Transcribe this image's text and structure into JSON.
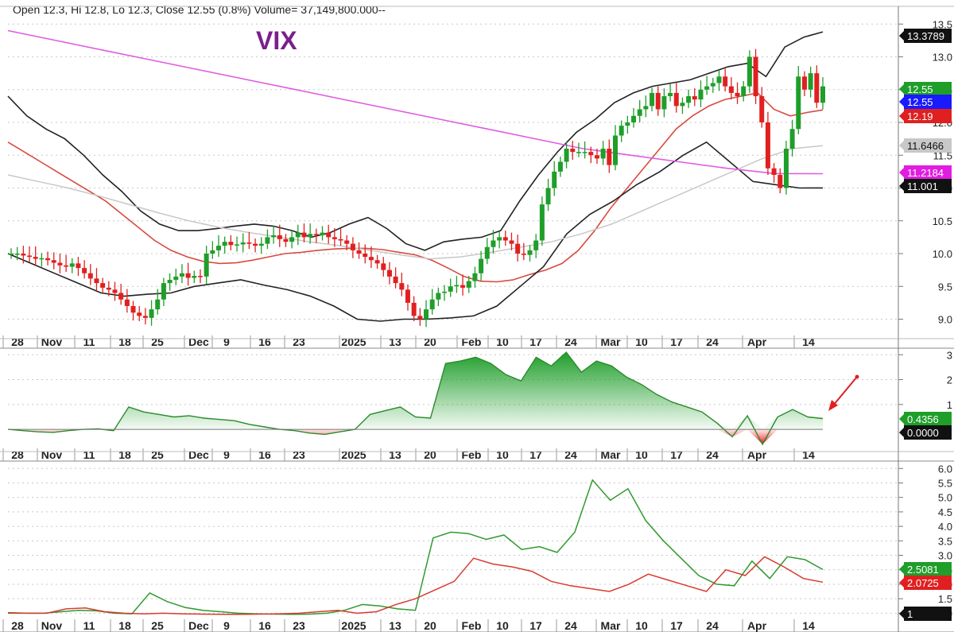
{
  "header": {
    "ohlc_text": "Open 12.3, Hi 12.8, Lo 12.3, Close 12.55 (0.8%) Volume= 37,149,800.000--"
  },
  "chart_data": [
    {
      "type": "candlestick",
      "title": "VIX",
      "x_axis_labels": [
        "28",
        "Nov",
        "11",
        "18",
        "25",
        "Dec",
        "9",
        "16",
        "23",
        "2025",
        "13",
        "20",
        "Feb",
        "10",
        "17",
        "24",
        "Mar",
        "10",
        "17",
        "24",
        "Apr",
        "14"
      ],
      "y_ticks": [
        "13.5",
        "13.0",
        "12.5",
        "12.0",
        "11.5",
        "11.0",
        "10.5",
        "10.0",
        "9.5",
        "9.0"
      ],
      "ylim": [
        8.8,
        13.6
      ],
      "grid": true,
      "candles_close": [
        10.0,
        10.0,
        9.97,
        9.95,
        9.92,
        9.93,
        9.9,
        9.86,
        9.82,
        9.8,
        9.85,
        9.78,
        9.7,
        9.62,
        9.55,
        9.48,
        9.45,
        9.4,
        9.3,
        9.2,
        9.1,
        9.05,
        9.02,
        9.15,
        9.3,
        9.55,
        9.6,
        9.65,
        9.7,
        9.63,
        9.66,
        9.65,
        10.0,
        10.05,
        10.12,
        10.18,
        10.13,
        10.14,
        10.17,
        10.15,
        10.12,
        10.15,
        10.25,
        10.28,
        10.22,
        10.18,
        10.25,
        10.32,
        10.25,
        10.3,
        10.28,
        10.32,
        10.25,
        10.22,
        10.2,
        10.15,
        10.05,
        10.0,
        9.95,
        9.9,
        9.85,
        9.75,
        9.65,
        9.55,
        9.45,
        9.25,
        9.05,
        9.0,
        9.15,
        9.3,
        9.4,
        9.42,
        9.5,
        9.52,
        9.48,
        9.58,
        9.7,
        9.92,
        10.1,
        10.2,
        10.25,
        10.2,
        10.15,
        10.0,
        9.98,
        10.05,
        10.2,
        10.75,
        11.0,
        11.25,
        11.4,
        11.6,
        11.55,
        11.55,
        11.55,
        11.5,
        11.45,
        11.6,
        11.35,
        11.8,
        11.95,
        12.0,
        12.1,
        12.2,
        12.25,
        12.45,
        12.2,
        12.4,
        12.45,
        12.25,
        12.3,
        12.4,
        12.35,
        12.5,
        12.55,
        12.6,
        12.7,
        12.55,
        12.45,
        12.4,
        12.55,
        13.0,
        12.4,
        12.0,
        11.3,
        11.2,
        11.0,
        11.6,
        11.9,
        12.7,
        12.5,
        12.75,
        12.3,
        12.55
      ],
      "series": [
        {
          "name": "",
          "color": "#d94a3f",
          "role": "middle-band",
          "values": [
            11.7,
            11.55,
            11.4,
            11.25,
            11.1,
            10.95,
            10.8,
            10.6,
            10.4,
            10.2,
            10.05,
            9.95,
            9.88,
            9.85,
            9.86,
            9.9,
            9.95,
            10.0,
            10.02,
            10.05,
            10.07,
            10.08,
            10.08,
            10.06,
            10.02,
            9.98,
            9.9,
            9.78,
            9.65,
            9.58,
            9.57,
            9.6,
            9.68,
            9.75,
            9.85,
            10.05,
            10.35,
            10.7,
            11.0,
            11.3,
            11.6,
            11.9,
            12.1,
            12.25,
            12.35,
            12.4,
            12.45,
            12.2,
            12.1,
            12.15,
            12.19
          ]
        },
        {
          "name": "",
          "color": "#222222",
          "role": "upper-band",
          "values": [
            12.4,
            12.1,
            11.9,
            11.75,
            11.5,
            11.2,
            10.95,
            10.65,
            10.45,
            10.35,
            10.35,
            10.38,
            10.42,
            10.45,
            10.42,
            10.35,
            10.25,
            10.32,
            10.45,
            10.55,
            10.38,
            10.15,
            10.05,
            10.18,
            10.22,
            10.25,
            10.35,
            10.8,
            11.2,
            11.55,
            11.85,
            12.05,
            12.3,
            12.45,
            12.55,
            12.6,
            12.65,
            12.75,
            12.85,
            12.9,
            12.7,
            13.15,
            13.3,
            13.38
          ]
        },
        {
          "name": "",
          "color": "#222222",
          "role": "lower-band",
          "values": [
            10.0,
            9.85,
            9.7,
            9.55,
            9.4,
            9.35,
            9.38,
            9.4,
            9.5,
            9.55,
            9.6,
            9.52,
            9.45,
            9.35,
            9.2,
            9.0,
            8.97,
            9.0,
            9.0,
            9.02,
            9.05,
            9.2,
            9.5,
            9.8,
            10.3,
            10.6,
            10.8,
            11.05,
            11.25,
            11.5,
            11.7,
            11.4,
            11.1,
            11.05,
            11.0,
            11.001
          ]
        },
        {
          "name": "",
          "color": "#c8c8c8",
          "role": "slow-ma",
          "values": [
            11.2,
            11.1,
            11.0,
            10.88,
            10.75,
            10.62,
            10.5,
            10.4,
            10.32,
            10.25,
            10.18,
            10.12,
            10.05,
            9.98,
            9.92,
            9.95,
            10.02,
            10.1,
            10.18,
            10.3,
            10.45,
            10.65,
            10.85,
            11.05,
            11.25,
            11.45,
            11.6,
            11.6466
          ]
        },
        {
          "name": "",
          "color": "#e05ce0",
          "role": "long-ma",
          "values": [
            13.4,
            13.25,
            13.1,
            12.95,
            12.8,
            12.65,
            12.5,
            12.35,
            12.2,
            12.05,
            11.9,
            11.75,
            11.6,
            11.5,
            11.4,
            11.3,
            11.22,
            11.2184
          ]
        }
      ],
      "price_labels": [
        {
          "text": "13.3789",
          "bg": "#111111",
          "fg": "#ffffff"
        },
        {
          "text": "12.55",
          "bg": "#1f9e2a",
          "fg": "#ffffff"
        },
        {
          "text": "12.55",
          "bg": "#1a1aff",
          "fg": "#ffffff"
        },
        {
          "text": "12.19",
          "bg": "#e02020",
          "fg": "#ffffff"
        },
        {
          "text": "11.6466",
          "bg": "#c8c8c8",
          "fg": "#111111"
        },
        {
          "text": "11.2184",
          "bg": "#e01de0",
          "fg": "#ffffff"
        },
        {
          "text": "11.001",
          "bg": "#111111",
          "fg": "#ffffff"
        }
      ]
    },
    {
      "type": "area",
      "x_axis_labels": [
        "28",
        "Nov",
        "11",
        "18",
        "25",
        "Dec",
        "9",
        "16",
        "23",
        "2025",
        "13",
        "20",
        "Feb",
        "10",
        "17",
        "24",
        "Mar",
        "10",
        "17",
        "24",
        "Apr",
        "14"
      ],
      "y_ticks": [
        "3",
        "2",
        "1"
      ],
      "ylim": [
        -0.7,
        3.2
      ],
      "values": [
        0.0,
        -0.05,
        -0.1,
        -0.12,
        -0.05,
        0.0,
        0.02,
        -0.05,
        0.9,
        0.7,
        0.6,
        0.5,
        0.55,
        0.45,
        0.4,
        0.35,
        0.2,
        0.1,
        0.0,
        -0.05,
        -0.15,
        -0.2,
        -0.1,
        0.0,
        0.6,
        0.75,
        0.9,
        0.5,
        0.45,
        2.65,
        2.75,
        2.9,
        2.65,
        2.2,
        1.95,
        2.9,
        2.55,
        3.1,
        2.3,
        2.75,
        2.55,
        2.1,
        1.8,
        1.4,
        1.1,
        0.9,
        0.7,
        0.25,
        -0.3,
        0.55,
        -0.6,
        0.5,
        0.8,
        0.5,
        0.4356
      ],
      "price_labels": [
        {
          "text": "0.4356",
          "bg": "#1f9e2a",
          "fg": "#ffffff"
        },
        {
          "text": "0.0000",
          "bg": "#111111",
          "fg": "#ffffff"
        }
      ]
    },
    {
      "type": "line",
      "x_axis_labels": [
        "28",
        "Nov",
        "11",
        "18",
        "25",
        "Dec",
        "9",
        "16",
        "23",
        "2025",
        "13",
        "20",
        "Feb",
        "10",
        "17",
        "24",
        "Mar",
        "10",
        "17",
        "24",
        "Apr",
        "14"
      ],
      "y_ticks": [
        "6.0",
        "5.5",
        "5.0",
        "4.5",
        "4.0",
        "3.5",
        "3.0",
        "2.5",
        "2.0",
        "1.5",
        "1.0"
      ],
      "ylim": [
        0.9,
        6.2
      ],
      "series": [
        {
          "name": "",
          "color": "#2f9a2f",
          "values": [
            1.0,
            1.0,
            1.0,
            1.05,
            1.1,
            1.08,
            1.0,
            0.98,
            1.7,
            1.4,
            1.2,
            1.1,
            1.05,
            1.0,
            0.98,
            0.97,
            0.96,
            0.97,
            1.0,
            1.1,
            1.3,
            1.25,
            1.15,
            1.1,
            3.6,
            3.8,
            3.75,
            3.55,
            3.7,
            3.2,
            3.3,
            3.1,
            3.8,
            5.6,
            4.9,
            5.3,
            4.2,
            3.5,
            2.9,
            2.3,
            2.0,
            1.95,
            2.8,
            2.2,
            2.95,
            2.85,
            2.5081
          ]
        },
        {
          "name": "",
          "color": "#d83a30",
          "values": [
            1.02,
            1.0,
            1.0,
            1.15,
            1.18,
            1.05,
            1.0,
            0.98,
            1.0,
            0.98,
            0.97,
            0.96,
            0.96,
            0.97,
            0.98,
            1.0,
            1.05,
            1.1,
            1.0,
            1.05,
            1.3,
            1.5,
            1.8,
            2.1,
            2.9,
            2.7,
            2.6,
            2.45,
            2.1,
            1.95,
            1.85,
            1.75,
            2.0,
            2.35,
            2.15,
            1.95,
            1.75,
            2.5,
            2.3,
            2.95,
            2.6,
            2.2,
            2.0725
          ]
        }
      ],
      "price_labels": [
        {
          "text": "2.5081",
          "bg": "#1f9e2a",
          "fg": "#ffffff"
        },
        {
          "text": "2.0725",
          "bg": "#e02020",
          "fg": "#ffffff"
        },
        {
          "text": "1",
          "bg": "#111111",
          "fg": "#ffffff"
        }
      ]
    }
  ]
}
